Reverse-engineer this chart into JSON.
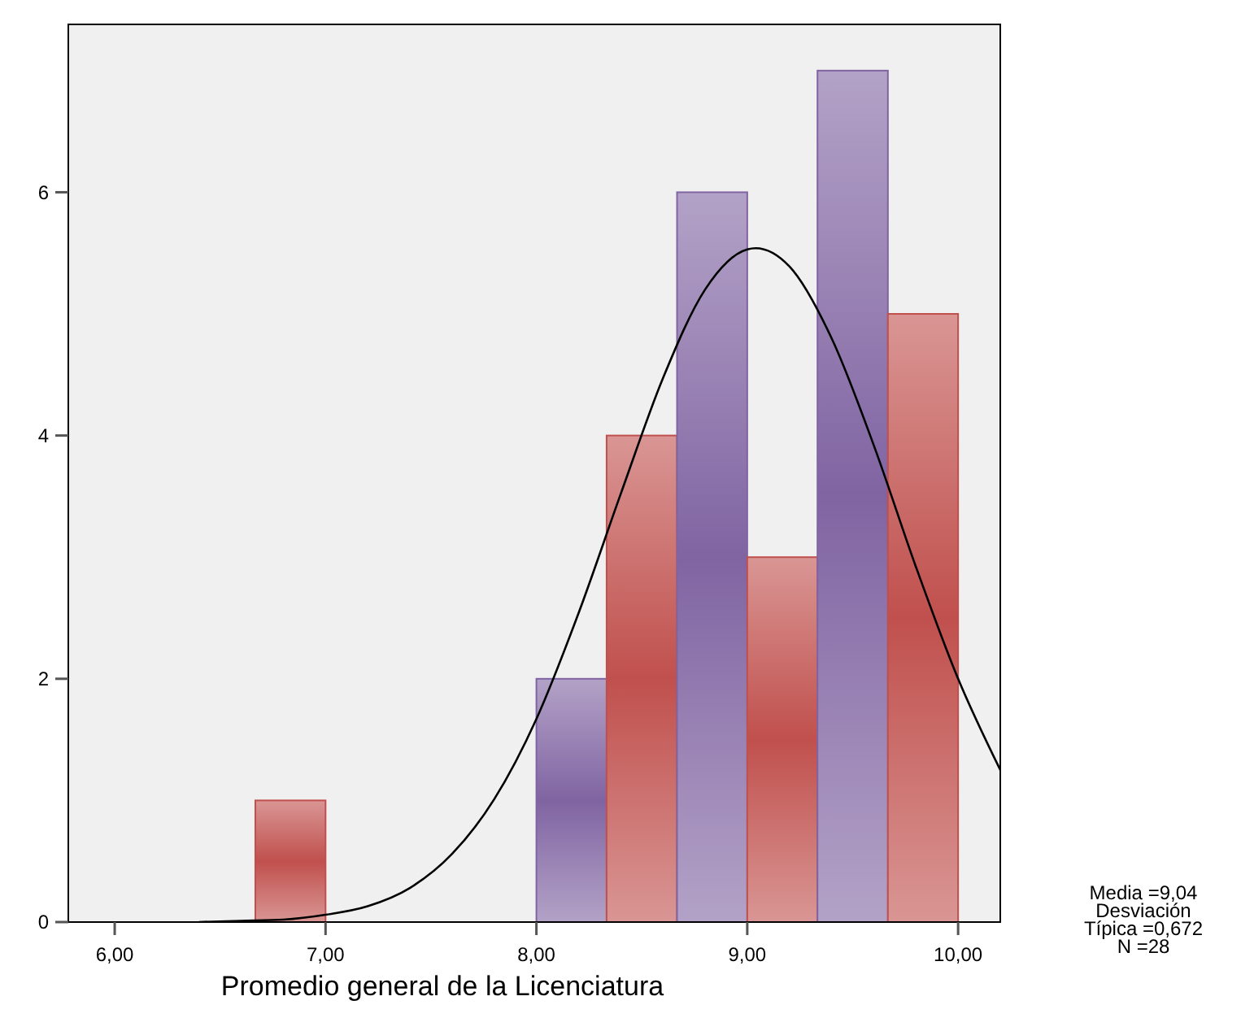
{
  "chart_data": {
    "type": "histogram",
    "xlabel": "Promedio general de la Licenciatura",
    "bins": [
      6.667,
      7.0,
      7.333,
      7.667,
      8.0,
      8.333,
      8.667,
      9.0,
      9.333,
      9.667,
      10.0
    ],
    "values": [
      1,
      0,
      0,
      0,
      2,
      4,
      6,
      3,
      7,
      5
    ],
    "colors": [
      "#c0504d",
      "#8064a2",
      "#c0504d",
      "#8064a2",
      "#8064a2",
      "#c0504d",
      "#8064a2",
      "#c0504d",
      "#8064a2",
      "#c0504d"
    ],
    "series": [
      {
        "type": "line",
        "color": "#000000",
        "x": [
          6.4,
          6.6,
          6.8,
          7.0,
          7.2,
          7.4,
          7.6,
          7.8,
          8.0,
          8.2,
          8.4,
          8.6,
          8.8,
          9.0,
          9.04,
          9.2,
          9.4,
          9.6,
          9.8,
          10.0,
          10.2
        ],
        "values": [
          0.0,
          0.01,
          0.02,
          0.06,
          0.13,
          0.28,
          0.56,
          1.01,
          1.67,
          2.54,
          3.52,
          4.47,
          5.2,
          5.53,
          5.54,
          5.39,
          4.8,
          3.92,
          2.92,
          2.0,
          1.25
        ]
      }
    ],
    "xlim": [
      5.78,
      10.2
    ],
    "ylim": [
      0,
      7.38
    ],
    "xticks": [
      {
        "value": 6,
        "label": "6,00"
      },
      {
        "value": 7,
        "label": "7,00"
      },
      {
        "value": 8,
        "label": "8,00"
      },
      {
        "value": 9,
        "label": "9,00"
      },
      {
        "value": 10,
        "label": "10,00"
      }
    ],
    "yticks": [
      0,
      2,
      4,
      6
    ],
    "grid": false,
    "annotations": [
      "Media =9,04",
      "Desviación",
      "Típica =0,672",
      "N =28"
    ]
  }
}
